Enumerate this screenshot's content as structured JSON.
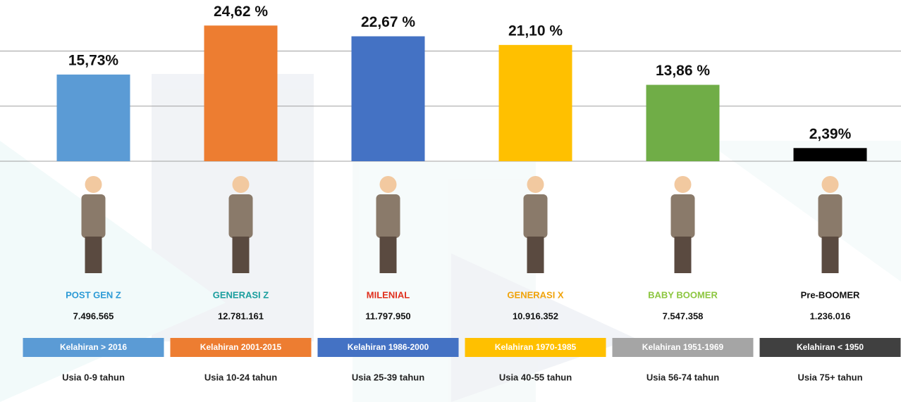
{
  "chart_data": {
    "type": "bar",
    "categories": [
      "POST GEN Z",
      "GENERASI Z",
      "MILENIAL",
      "GENERASI X",
      "BABY BOOMER",
      "Pre-BOOMER"
    ],
    "values": [
      15.73,
      24.62,
      22.67,
      21.1,
      13.86,
      2.39
    ],
    "value_labels": [
      "15,73%",
      "24,62 %",
      "22,67 %",
      "21,10 %",
      "13,86 %",
      "2,39%"
    ],
    "colors": [
      "#5b9bd5",
      "#ed7d31",
      "#4472c4",
      "#ffc000",
      "#70ad47",
      "#000000"
    ],
    "label_colors": [
      "#2e9bd6",
      "#1a9e9e",
      "#e0301e",
      "#f0a30a",
      "#8cc63f",
      "#111111"
    ],
    "population": [
      "7.496.565",
      "12.781.161",
      "11.797.950",
      "10.916.352",
      "7.547.358",
      "1.236.016"
    ],
    "birth": [
      "Kelahiran > 2016",
      "Kelahiran 2001-2015",
      "Kelahiran 1986-2000",
      "Kelahiran 1970-1985",
      "Kelahiran 1951-1969",
      "Kelahiran < 1950"
    ],
    "birth_colors": [
      "#5b9bd5",
      "#ed7d31",
      "#4472c4",
      "#ffc000",
      "#a5a5a5",
      "#404040"
    ],
    "age": [
      "Usia 0-9 tahun",
      "Usia 10-24 tahun",
      "Usia 25-39 tahun",
      "Usia 40-55 tahun",
      "Usia 56-74 tahun",
      "Usia 75+ tahun"
    ],
    "ylim": [
      0,
      29
    ],
    "yticks": [
      0,
      10,
      20
    ],
    "grid": true
  }
}
